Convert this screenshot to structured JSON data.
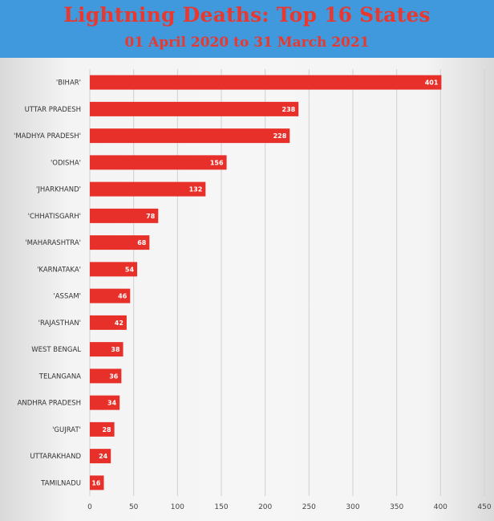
{
  "header": {
    "title": "Lightning Deaths: Top 16 States",
    "subtitle": "01 April 2020 to 31 March 2021"
  },
  "colors": {
    "header_bg": "#3f99dc",
    "title": "#e8382f",
    "bar": "#e8302a"
  },
  "chart_data": {
    "type": "bar",
    "orientation": "horizontal",
    "title": "Lightning Deaths: Top 16 States",
    "subtitle": "01 April 2020 to 31 March 2021",
    "categories": [
      "'BIHAR'",
      "UTTAR PRADESH",
      "'MADHYA PRADESH'",
      "'ODISHA'",
      "'JHARKHAND'",
      "'CHHATISGARH'",
      "'MAHARASHTRA'",
      "'KARNATAKA'",
      "'ASSAM'",
      "'RAJASTHAN'",
      "WEST BENGAL",
      "TELANGANA",
      "ANDHRA PRADESH",
      "'GUJRAT'",
      "UTTARAKHAND",
      "TAMILNADU"
    ],
    "values": [
      401,
      238,
      228,
      156,
      132,
      78,
      68,
      54,
      46,
      42,
      38,
      36,
      34,
      28,
      24,
      16
    ],
    "xlim": [
      0,
      450
    ],
    "xticks": [
      0,
      50,
      100,
      150,
      200,
      250,
      300,
      350,
      400,
      450
    ],
    "grid": true,
    "legend": "none",
    "data_labels": true
  }
}
